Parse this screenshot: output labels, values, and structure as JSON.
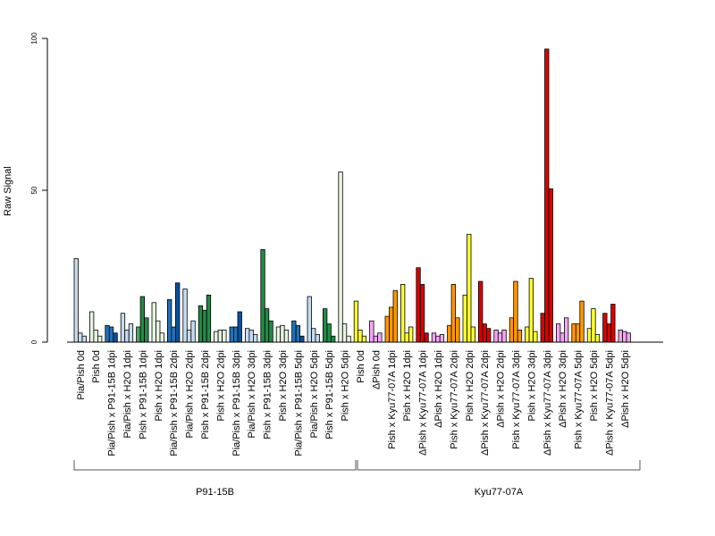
{
  "chart_data": {
    "type": "bar",
    "ylabel": "Raw Signal",
    "xlabel": "",
    "ylim": [
      0,
      100
    ],
    "yticks": [
      "0",
      "50",
      "100"
    ],
    "group_labels": [
      {
        "label": "P91-15B"
      },
      {
        "label": "Kyu77-07A"
      }
    ],
    "categories": [
      {
        "label": "Pia/Pish 0d",
        "colors": [
          "#c6dbef",
          "#c6dbef",
          "#c6dbef"
        ],
        "values": [
          27.5,
          3,
          2
        ]
      },
      {
        "label": "Pish 0d",
        "colors": [
          "#e5f5e0",
          "#e5f5e0",
          "#e5f5e0"
        ],
        "values": [
          10,
          4,
          2
        ]
      },
      {
        "label": "Pia/Pish x P91-15B 1dpi",
        "colors": [
          "#2171b5",
          "#2171b5",
          "#08519c"
        ],
        "values": [
          5.5,
          5,
          3
        ]
      },
      {
        "label": "Pia/Pish x H2O 1dpi",
        "colors": [
          "#c6dbef",
          "#c6dbef",
          "#c6dbef"
        ],
        "values": [
          9.5,
          4,
          6
        ]
      },
      {
        "label": "Pish x P91-15B 1dpi",
        "colors": [
          "#41ab5d",
          "#238b45",
          "#238b45"
        ],
        "values": [
          5,
          15,
          8
        ]
      },
      {
        "label": "Pish x H2O 1dpi",
        "colors": [
          "#e5f5e0",
          "#e5f5e0",
          "#e5f5e0"
        ],
        "values": [
          13,
          7,
          3
        ]
      },
      {
        "label": "Pia/Pish x P91-15B 2dpi",
        "colors": [
          "#2171b5",
          "#2171b5",
          "#08519c"
        ],
        "values": [
          14,
          5,
          19.5
        ]
      },
      {
        "label": "Pia/Pish x H2O 2dpi",
        "colors": [
          "#c6dbef",
          "#c6dbef",
          "#c6dbef"
        ],
        "values": [
          17.5,
          4,
          7
        ]
      },
      {
        "label": "Pish x P91-15B 2dpi",
        "colors": [
          "#238b45",
          "#238b45",
          "#238b45"
        ],
        "values": [
          12,
          10.5,
          15.5
        ]
      },
      {
        "label": "Pish x H2O 2dpi",
        "colors": [
          "#e5f5e0",
          "#e5f5e0",
          "#e5f5e0"
        ],
        "values": [
          3.5,
          4,
          4
        ]
      },
      {
        "label": "Pia/Pish x P91-15B 3dpi",
        "colors": [
          "#2171b5",
          "#2171b5",
          "#08519c"
        ],
        "values": [
          5,
          5,
          10
        ]
      },
      {
        "label": "Pia/Pish x H2O 3dpi",
        "colors": [
          "#c6dbef",
          "#c6dbef",
          "#c6dbef"
        ],
        "values": [
          4.5,
          4,
          2.5
        ]
      },
      {
        "label": "Pish x P91-15B 3dpi",
        "colors": [
          "#238b45",
          "#238b45",
          "#238b45"
        ],
        "values": [
          30.5,
          11,
          7
        ]
      },
      {
        "label": "Pish x H2O 3dpi",
        "colors": [
          "#e5f5e0",
          "#e5f5e0",
          "#e5f5e0"
        ],
        "values": [
          5,
          5.5,
          4
        ]
      },
      {
        "label": "Pia/Pish x P91-15B 5dpi",
        "colors": [
          "#2171b5",
          "#2171b5",
          "#08519c"
        ],
        "values": [
          7,
          5.5,
          2
        ]
      },
      {
        "label": "Pia/Pish x H2O 5dpi",
        "colors": [
          "#c6dbef",
          "#c6dbef",
          "#c6dbef"
        ],
        "values": [
          15,
          4.5,
          2.5
        ]
      },
      {
        "label": "Pish x P91-15B 5dpi",
        "colors": [
          "#238b45",
          "#238b45",
          "#238b45"
        ],
        "values": [
          11,
          6,
          2
        ]
      },
      {
        "label": "Pish x H2O 5dpi",
        "colors": [
          "#e5f5e0",
          "#e5f5e0",
          "#e5f5e0"
        ],
        "values": [
          56,
          6,
          2
        ]
      },
      {
        "label": "Pish 0d",
        "colors": [
          "#ffff33",
          "#ffff33",
          "#ffff33"
        ],
        "values": [
          13.5,
          4,
          2
        ]
      },
      {
        "label": "ΔPish 0d",
        "colors": [
          "#f4a6f4",
          "#f4a6f4",
          "#f4a6f4"
        ],
        "values": [
          7,
          2,
          3
        ]
      },
      {
        "label": "Pish x Kyu77-07A 1dpi",
        "colors": [
          "#ff9900",
          "#ff9900",
          "#ff9900"
        ],
        "values": [
          8.5,
          11.5,
          17
        ]
      },
      {
        "label": "Pish x H2O 1dpi",
        "colors": [
          "#ffff33",
          "#ffff33",
          "#ffff33"
        ],
        "values": [
          19,
          3,
          5
        ]
      },
      {
        "label": "ΔPish x Kyu77-07A 1dpi",
        "colors": [
          "#dd0000",
          "#dd0000",
          "#dd0000"
        ],
        "values": [
          24.5,
          19,
          3
        ]
      },
      {
        "label": "ΔPish x H2O 1dpi",
        "colors": [
          "#f4a6f4",
          "#f4a6f4",
          "#f4a6f4"
        ],
        "values": [
          3,
          2,
          2.5
        ]
      },
      {
        "label": "Pish x Kyu77-07A 2dpi",
        "colors": [
          "#ff9900",
          "#ff9900",
          "#ff9900"
        ],
        "values": [
          5.5,
          19,
          8
        ]
      },
      {
        "label": "Pish x H2O 2dpi",
        "colors": [
          "#ffff33",
          "#ffff33",
          "#ffff33"
        ],
        "values": [
          15.5,
          35.5,
          5
        ]
      },
      {
        "label": "ΔPish x Kyu77-07A 2dpi",
        "colors": [
          "#dd0000",
          "#dd0000",
          "#dd0000"
        ],
        "values": [
          20,
          6,
          4.5
        ]
      },
      {
        "label": "ΔPish x H2O 2dpi",
        "colors": [
          "#f4a6f4",
          "#f4a6f4",
          "#f4a6f4"
        ],
        "values": [
          4,
          3,
          4
        ]
      },
      {
        "label": "Pish x Kyu77-07A 3dpi",
        "colors": [
          "#ff9900",
          "#ff9900",
          "#ff9900"
        ],
        "values": [
          8,
          20,
          4
        ]
      },
      {
        "label": "Pish x H2O 3dpi",
        "colors": [
          "#ffff33",
          "#ffff33",
          "#ffff33"
        ],
        "values": [
          5,
          21,
          3.5
        ]
      },
      {
        "label": "ΔPish x Kyu77-07A 3dpi",
        "colors": [
          "#dd0000",
          "#dd0000",
          "#dd0000"
        ],
        "values": [
          9.5,
          96.5,
          50.5
        ]
      },
      {
        "label": "ΔPish x H2O 3dpi",
        "colors": [
          "#f4a6f4",
          "#f4a6f4",
          "#f4a6f4"
        ],
        "values": [
          6,
          3,
          8
        ]
      },
      {
        "label": "Pish x Kyu77-07A 5dpi",
        "colors": [
          "#ff9900",
          "#ff9900",
          "#ff9900"
        ],
        "values": [
          6,
          6,
          13.5
        ]
      },
      {
        "label": "Pish x H2O 5dpi",
        "colors": [
          "#ffff33",
          "#ffff33",
          "#ffff33"
        ],
        "values": [
          4.5,
          11,
          2.5
        ]
      },
      {
        "label": "ΔPish x Kyu77-07A 5dpi",
        "colors": [
          "#dd0000",
          "#dd0000",
          "#dd0000"
        ],
        "values": [
          9.5,
          6,
          12.5
        ]
      },
      {
        "label": "ΔPish x H2O 5dpi",
        "colors": [
          "#f4a6f4",
          "#f4a6f4",
          "#f4a6f4"
        ],
        "values": [
          4,
          3.5,
          3
        ]
      }
    ],
    "group_spans": [
      {
        "label_index": 0,
        "first": 0,
        "last": 17
      },
      {
        "label_index": 1,
        "first": 18,
        "last": 35
      }
    ],
    "grid": false,
    "legend": "none"
  }
}
